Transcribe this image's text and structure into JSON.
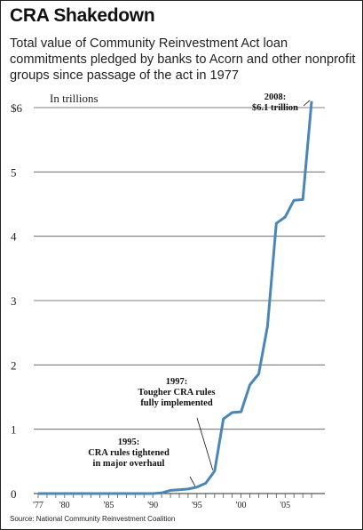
{
  "title": "CRA Shakedown",
  "subtitle": "Total value of Community Reinvestment Act loan commitments pledged by banks to Acorn and other nonprofit groups since passage of the act in 1977",
  "source": "Source: National Community Reinvestment Coalition",
  "colors": {
    "line": "#4a86b8",
    "grid": "#555555",
    "text": "#222222"
  },
  "chart_data": {
    "type": "line",
    "title": "CRA Shakedown",
    "subtitle": "Total value of Community Reinvestment Act loan commitments pledged by banks to Acorn and other nonprofit groups since passage of the act in 1977",
    "unit_label": "In trillions",
    "xlabel": "",
    "ylabel": "",
    "xlim": [
      1976.5,
      2009.5
    ],
    "ylim": [
      0,
      6
    ],
    "grid": true,
    "y_ticks": [
      0,
      1,
      2,
      3,
      4,
      5,
      6
    ],
    "y_tick_labels": [
      "0",
      "1",
      "2",
      "3",
      "4",
      "5",
      "$6"
    ],
    "x_ticks": [
      1977,
      1980,
      1985,
      1990,
      1995,
      2000,
      2005
    ],
    "x_tick_labels": [
      "'77",
      "'80",
      "'85",
      "'90",
      "'95",
      "'00",
      "'05"
    ],
    "x": [
      1977,
      1978,
      1979,
      1980,
      1981,
      1982,
      1983,
      1984,
      1985,
      1986,
      1987,
      1988,
      1989,
      1990,
      1991,
      1992,
      1993,
      1994,
      1995,
      1996,
      1997,
      1998,
      1999,
      2000,
      2001,
      2002,
      2003,
      2004,
      2005,
      2006,
      2007,
      2008
    ],
    "values": [
      0,
      0,
      0,
      0,
      0,
      0,
      0,
      0,
      0,
      0,
      0,
      0,
      0,
      0,
      0.01,
      0.05,
      0.06,
      0.07,
      0.1,
      0.16,
      0.35,
      1.16,
      1.26,
      1.27,
      1.69,
      1.86,
      2.6,
      4.2,
      4.3,
      4.56,
      4.57,
      6.1
    ],
    "annotations": [
      {
        "x": 2008,
        "y": 6.1,
        "lines": [
          "2008:",
          "$6.1 trillion"
        ]
      },
      {
        "x": 1997,
        "y": 0.35,
        "lines": [
          "1997:",
          "Tougher CRA rules",
          "fully implemented"
        ]
      },
      {
        "x": 1995,
        "y": 0.1,
        "lines": [
          "1995:",
          "CRA rules tightened",
          "in major overhaul"
        ]
      }
    ]
  }
}
